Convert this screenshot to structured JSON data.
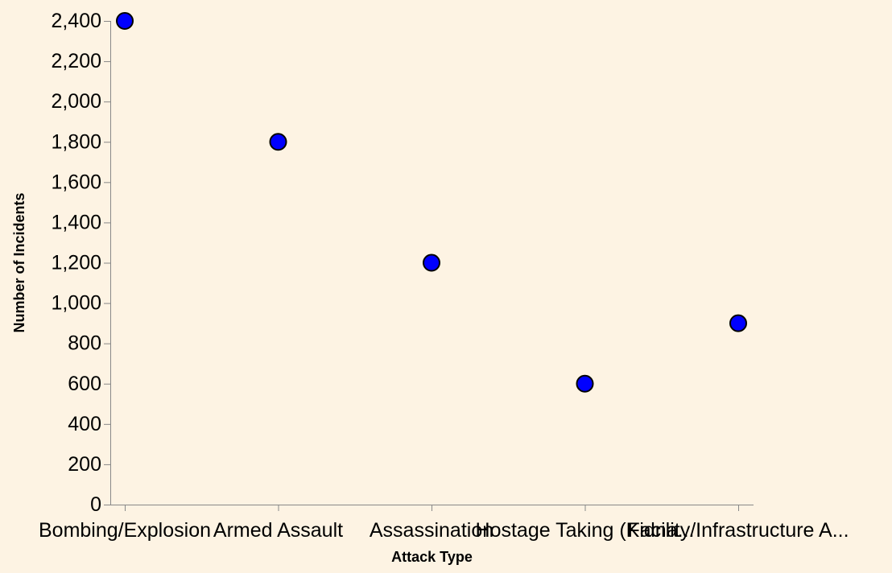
{
  "chart_data": {
    "type": "scatter",
    "categories": [
      "Bombing/Explosion",
      "Armed Assault",
      "Assassination",
      "Hostage Taking (Kidna...",
      "Facility/Infrastructure A..."
    ],
    "values": [
      2400,
      1800,
      1200,
      600,
      900
    ],
    "xlabel": "Attack Type",
    "ylabel": "Number of Incidents",
    "ylim": [
      0,
      2400
    ],
    "yticks": [
      0,
      200,
      400,
      600,
      800,
      1000,
      1200,
      1400,
      1600,
      1800,
      2000,
      2200,
      2400
    ],
    "ytick_labels": [
      "0",
      "200",
      "400",
      "600",
      "800",
      "1,000",
      "1,200",
      "1,400",
      "1,600",
      "1,800",
      "2,000",
      "2,200",
      "2,400"
    ],
    "grid": false,
    "legend": "none",
    "colors": {
      "point_fill": "#0000ff",
      "point_stroke": "#000000",
      "axis": "#888888",
      "background": "#fdf3e3"
    }
  }
}
